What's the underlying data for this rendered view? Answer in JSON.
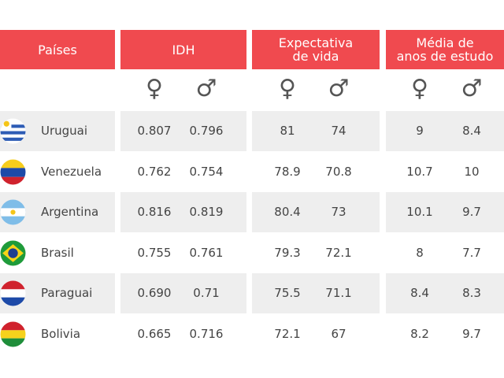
{
  "table": {
    "headers": [
      [
        "Países"
      ],
      [
        "IDH"
      ],
      [
        "Expectativa",
        "de vida"
      ],
      [
        "Média de",
        "anos de estudo"
      ]
    ],
    "subheaders": [
      "♀",
      "♂",
      "♀",
      "♂",
      "♀",
      "♂"
    ],
    "rows": [
      [
        "Uruguai",
        "0.807",
        "0.796",
        "81",
        "74",
        "9",
        "8.4"
      ],
      [
        "Venezuela",
        "0.762",
        "0.754",
        "78.9",
        "70.8",
        "10.7",
        "10"
      ],
      [
        "Argentina",
        "0.816",
        "0.819",
        "80.4",
        "73",
        "10.1",
        "9.7"
      ],
      [
        "Brasil",
        "0.755",
        "0.761",
        "79.3",
        "72.1",
        "8",
        "7.7"
      ],
      [
        "Paraguai",
        "0.690",
        "0.71",
        "75.5",
        "71.1",
        "8.4",
        "8.3"
      ],
      [
        "Bolivia",
        "0.665",
        "0.716",
        "72.1",
        "67",
        "8.2",
        "9.7"
      ]
    ]
  }
}
